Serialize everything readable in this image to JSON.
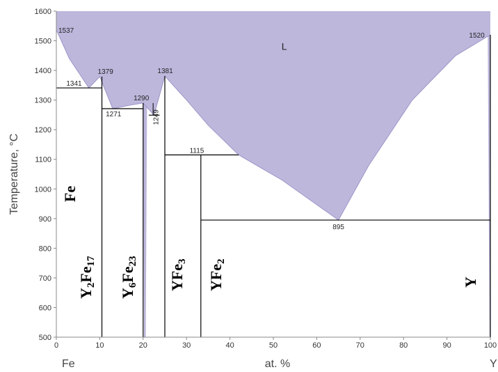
{
  "chart_data": {
    "type": "phase-diagram",
    "title": "",
    "xlabel": "at. %",
    "ylabel": "Temperature, °C",
    "x_end_labels": {
      "left": "Fe",
      "right": "Y"
    },
    "xlim": [
      0,
      100
    ],
    "ylim": [
      500,
      1600
    ],
    "xticks": [
      0,
      10,
      20,
      30,
      40,
      50,
      60,
      70,
      80,
      90,
      100
    ],
    "yticks": [
      500,
      600,
      700,
      800,
      900,
      1000,
      1100,
      1200,
      1300,
      1400,
      1500,
      1600
    ],
    "grid": false,
    "liquid_fill_color": "#bdb7dc",
    "liquid_label": "L",
    "liquidus": [
      {
        "x": 0,
        "y": 1537
      },
      {
        "x": 3,
        "y": 1440
      },
      {
        "x": 7.5,
        "y": 1341
      },
      {
        "x": 10,
        "y": 1379
      },
      {
        "x": 13,
        "y": 1271
      },
      {
        "x": 17,
        "y": 1283
      },
      {
        "x": 20,
        "y": 1290
      },
      {
        "x": 22.5,
        "y": 1249
      },
      {
        "x": 25,
        "y": 1381
      },
      {
        "x": 30,
        "y": 1300
      },
      {
        "x": 35,
        "y": 1215
      },
      {
        "x": 42,
        "y": 1115
      },
      {
        "x": 52,
        "y": 1030
      },
      {
        "x": 65,
        "y": 895
      },
      {
        "x": 72,
        "y": 1080
      },
      {
        "x": 82,
        "y": 1300
      },
      {
        "x": 92,
        "y": 1450
      },
      {
        "x": 100,
        "y": 1520
      }
    ],
    "compounds": [
      {
        "name": "Y2Fe17",
        "at_pct": 10.5,
        "label_main": "Y",
        "sub1": "2",
        "label_mid": "Fe",
        "sub2": "17"
      },
      {
        "name": "Y6Fe23",
        "at_pct": 20.5,
        "label_main": "Y",
        "sub1": "6",
        "label_mid": "Fe",
        "sub2": "23"
      },
      {
        "name": "YFe3",
        "at_pct": 25,
        "label_main": "YFe",
        "sub1": "3"
      },
      {
        "name": "YFe2",
        "at_pct": 33.3,
        "label_main": "YFe",
        "sub1": "2"
      }
    ],
    "phase_labels": {
      "fe": "Fe",
      "y": "Y"
    },
    "invariants": [
      {
        "label": "1537",
        "x": 0,
        "y": 1537
      },
      {
        "label": "1341",
        "x": 7.5,
        "y": 1341
      },
      {
        "label": "1379",
        "x": 10.5,
        "y": 1379
      },
      {
        "label": "1271",
        "x": 13,
        "y": 1271
      },
      {
        "label": "1290",
        "x": 20,
        "y": 1290
      },
      {
        "label": "1249",
        "x": 22.5,
        "y": 1249
      },
      {
        "label": "1381",
        "x": 25,
        "y": 1381
      },
      {
        "label": "1115",
        "x": 33.3,
        "y": 1115
      },
      {
        "label": "895",
        "x": 65,
        "y": 895
      },
      {
        "label": "1520",
        "x": 100,
        "y": 1520
      }
    ]
  }
}
